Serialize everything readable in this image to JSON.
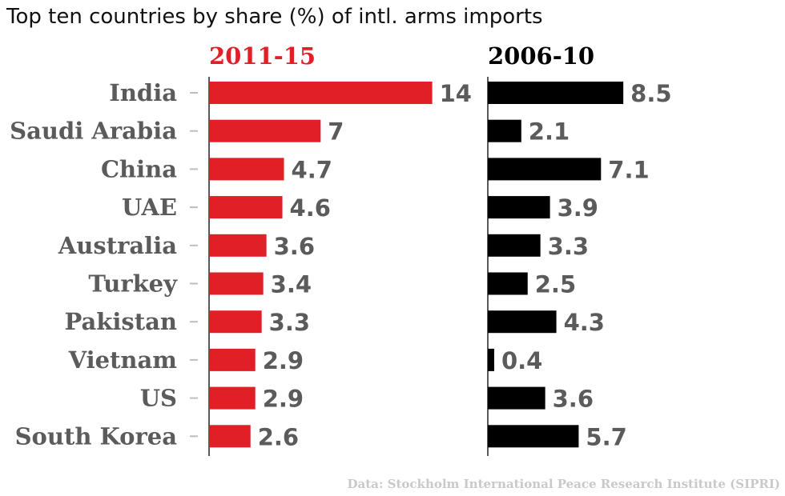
{
  "title": "Top ten countries by share (%) of intl. arms imports",
  "source": "Data: Stockholm International Peace Research Institute (SIPRI)",
  "colors": {
    "panel1": "#e01f26",
    "panel2": "#000000",
    "label": "#5b5b5b",
    "axis": "#222222",
    "tick": "#bdbdbd"
  },
  "chart_data": {
    "type": "bar",
    "orientation": "horizontal",
    "title": "Top ten countries by share (%) of intl. arms imports",
    "categories": [
      "India",
      "Saudi Arabia",
      "China",
      "UAE",
      "Australia",
      "Turkey",
      "Pakistan",
      "Vietnam",
      "US",
      "South Korea"
    ],
    "series": [
      {
        "name": "2011-15",
        "values": [
          14,
          7,
          4.7,
          4.6,
          3.6,
          3.4,
          3.3,
          2.9,
          2.9,
          2.6
        ],
        "labels": [
          "14",
          "7",
          "4.7",
          "4.6",
          "3.6",
          "3.4",
          "3.3",
          "2.9",
          "2.9",
          "2.6"
        ]
      },
      {
        "name": "2006-10",
        "values": [
          8.5,
          2.1,
          7.1,
          3.9,
          3.3,
          2.5,
          4.3,
          0.4,
          3.6,
          5.7
        ],
        "labels": [
          "8.5",
          "2.1",
          "7.1",
          "3.9",
          "3.3",
          "2.5",
          "4.3",
          "0.4",
          "3.6",
          "5.7"
        ]
      }
    ],
    "xlabel": "",
    "ylabel": "",
    "grid": false
  }
}
